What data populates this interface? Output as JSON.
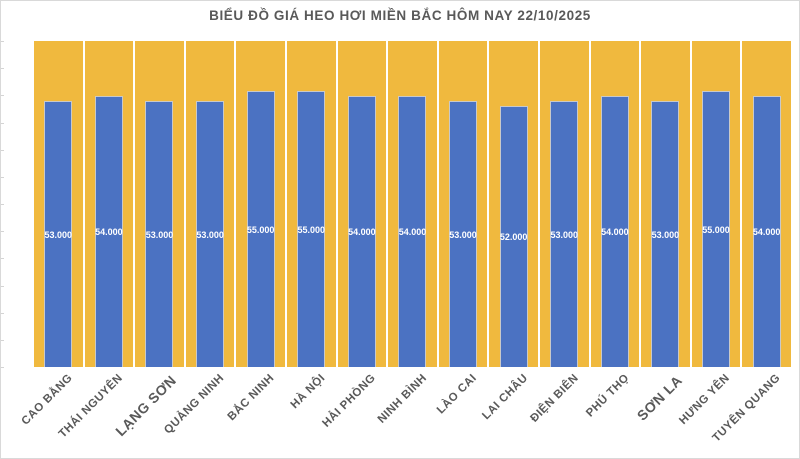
{
  "colors": {
    "bar_blue": "#4b72c2",
    "plot_yellow": "#f0b93e",
    "title_gray": "#595959",
    "axis_label_gray": "#595959",
    "value_label_white": "#ffffff",
    "frame_gray": "#d9d9d9"
  },
  "chart_data": {
    "type": "bar",
    "title": "BIỂU ĐỒ GIÁ HEO HƠI MIỀN BẮC HÔM NAY 22/10/2025",
    "categories": [
      "CAO BẰNG",
      "THÁI NGUYÊN",
      "LẠNG SƠN",
      "QUẢNG NINH",
      "BẮC NINH",
      "HÀ NỘI",
      "HẢI PHÒNG",
      "NINH BÌNH",
      "LÀO CAI",
      "LAI CHÂU",
      "ĐIỆN BIÊN",
      "PHÚ THỌ",
      "SƠN LA",
      "HƯNG YÊN",
      "TUYÊN QUANG"
    ],
    "values": [
      53000,
      54000,
      53000,
      53000,
      55000,
      55000,
      54000,
      54000,
      53000,
      52000,
      53000,
      54000,
      53000,
      55000,
      54000
    ],
    "value_labels": [
      "53.000",
      "54.000",
      "53.000",
      "53.000",
      "55.000",
      "55.000",
      "54.000",
      "54.000",
      "53.000",
      "52.000",
      "53.000",
      "54.000",
      "53.000",
      "55.000",
      "54.000"
    ],
    "xlabel": "",
    "ylabel": "",
    "ylim": [
      0,
      65000
    ],
    "y_tick_count": 12,
    "grid": false,
    "legend": false,
    "x_tick_label_rotation": -45,
    "large_label_indices": [
      2,
      12
    ],
    "bar_fill_color": "#4b72c2",
    "plot_background_color": "#f0b93e"
  }
}
